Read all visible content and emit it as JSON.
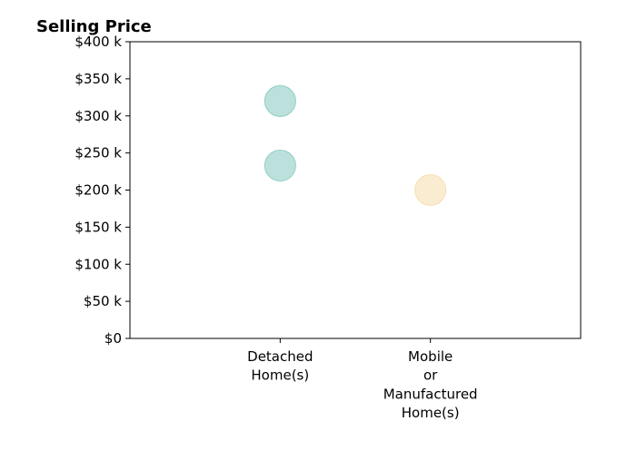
{
  "chart_data": {
    "type": "scatter",
    "title": "Selling Price",
    "xlabel": "",
    "ylabel": "",
    "categories": [
      [
        "Detached",
        "Home(s)"
      ],
      [
        "Mobile",
        "or",
        "Manufactured",
        "Home(s)"
      ]
    ],
    "ylim": [
      0,
      400000
    ],
    "y_ticks": [
      0,
      50000,
      100000,
      150000,
      200000,
      250000,
      300000,
      350000,
      400000
    ],
    "y_tick_labels": [
      "$0",
      "$50 k",
      "$100 k",
      "$150 k",
      "$200 k",
      "$250 k",
      "$300 k",
      "$350 k",
      "$400 k"
    ],
    "grid": false,
    "legend": "none",
    "points": [
      {
        "category": 0,
        "value": 320000,
        "color": "#8fcdc7"
      },
      {
        "category": 0,
        "value": 233000,
        "color": "#8fcdc7"
      },
      {
        "category": 1,
        "value": 200000,
        "color": "#f6dfb2"
      }
    ],
    "colors": {
      "detached": "#8fcdc7",
      "mobile": "#f6dfb2"
    }
  }
}
